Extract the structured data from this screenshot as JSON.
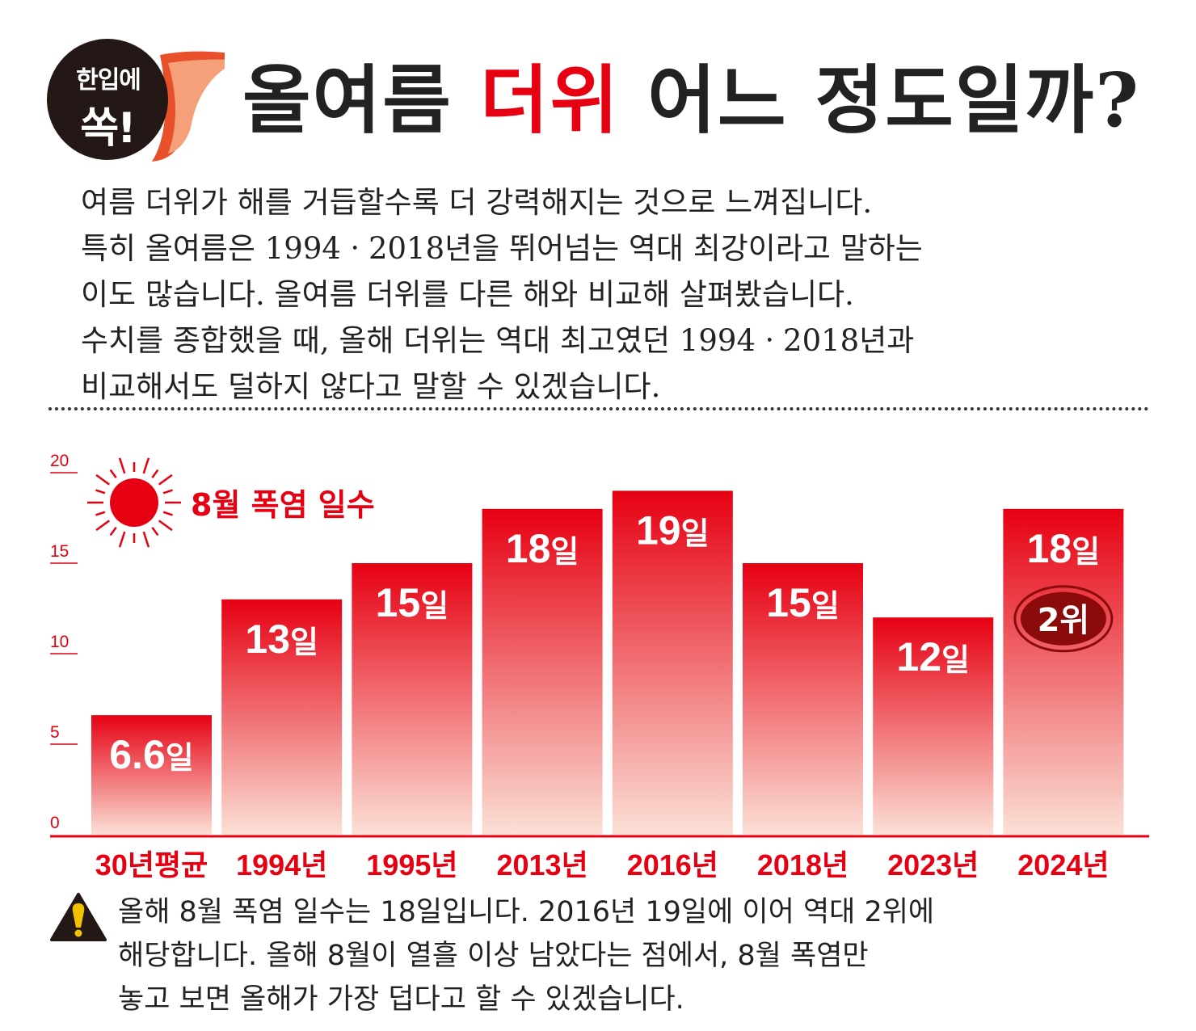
{
  "badge": {
    "line1": "한입에",
    "line2": "쏙!"
  },
  "title": {
    "part1": "올여름 ",
    "highlight": "더위",
    "part2": " 어느 정도일까?"
  },
  "intro_lines": [
    "여름 더위가 해를 거듭할수록 더 강력해지는 것으로 느껴집니다.",
    "특히 올여름은 1994ㆍ2018년을 뛰어넘는 역대 최강이라고 말하는",
    "이도 많습니다. 올여름 더위를 다른 해와 비교해 살펴봤습니다.",
    "수치를 종합했을 때, 올해 더위는 역대 최고였던 1994ㆍ2018년과",
    "비교해서도 덜하지 않다고 말할 수 있겠습니다."
  ],
  "chart_data": {
    "type": "bar",
    "title": "8월 폭염 일수",
    "categories": [
      "30년평균",
      "1994년",
      "1995년",
      "2013년",
      "2016년",
      "2018년",
      "2023년",
      "2024년"
    ],
    "values": [
      6.6,
      13,
      15,
      18,
      19,
      15,
      12,
      18
    ],
    "value_labels": [
      "6.6",
      "13",
      "15",
      "18",
      "19",
      "15",
      "12",
      "18"
    ],
    "value_unit": "일",
    "ylim": [
      0,
      20
    ],
    "yticks": [
      "0",
      "5",
      "10",
      "15",
      "20"
    ],
    "rank_badge": {
      "category": "2024년",
      "text": "2위"
    },
    "colors": {
      "bar_top": "#e60012",
      "bar_bottom": "#fbe0d6",
      "text": "#e60012",
      "rank_badge": "#8b0a0a"
    }
  },
  "note_lines": [
    "올해 8월 폭염 일수는 18일입니다. 2016년 19일에 이어 역대 2위에",
    "해당합니다. 올해 8월이 열흘 이상 남았다는 점에서, 8월 폭염만",
    "놓고 보면 올해가 가장 덥다고 할 수 있겠습니다."
  ]
}
